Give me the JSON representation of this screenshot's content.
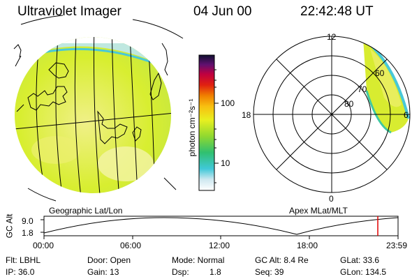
{
  "header": {
    "title": "Ultraviolet Imager",
    "date": "04 Jun 00",
    "time": "22:42:48 UT"
  },
  "colorbar": {
    "unit_label": "photon cm⁻²s⁻¹",
    "tick_100": "100",
    "tick_10": "10"
  },
  "left_panel": {
    "caption": "Geographic Lat/Lon"
  },
  "right_panel": {
    "caption": "Apex MLat/MLT",
    "mlt_top": "12",
    "mlt_left": "18",
    "mlt_bottom": "0",
    "mlt_right": "6",
    "lat_60": "60",
    "lat_70": "70",
    "lat_80": "80"
  },
  "timeline": {
    "axis_label": "GC Alt",
    "y_top": "9.0",
    "y_bottom": "1.8",
    "ticks": [
      "00:00",
      "06:00",
      "12:00",
      "18:00",
      "23:59"
    ]
  },
  "info": {
    "flt": "Flt: LBHL",
    "door": "Door: Open",
    "mode": "Mode: Normal",
    "gc_alt": "GC Alt: 8.4 Re",
    "glat": "GLat: 33.6",
    "ip": "IP: 36.0",
    "gain": "Gain: 13",
    "dsp_label": "Dsp:",
    "dsp_value": "1.8",
    "seq": "Seq: 39",
    "glon": "GLon: 134.5"
  }
}
